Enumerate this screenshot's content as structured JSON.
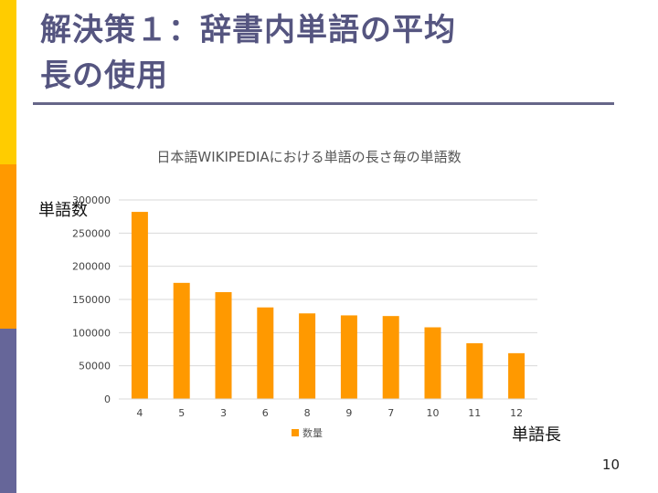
{
  "slide": {
    "title_line1": "解決策１：辞書内単語の平均",
    "title_line2": "長の使用",
    "page_number": "10"
  },
  "colors": {
    "sidebar_top": "#FFCC00",
    "sidebar_mid": "#FF9900",
    "sidebar_bottom": "#666699",
    "title": "#555580",
    "bar": "#FF9900"
  },
  "chart_data": {
    "type": "bar",
    "title": "日本語WIKIPEDIAにおける単語の長さ毎の単語数",
    "xlabel": "単語長",
    "ylabel": "単語数",
    "categories": [
      "4",
      "5",
      "3",
      "6",
      "8",
      "9",
      "7",
      "10",
      "11",
      "12"
    ],
    "series": [
      {
        "name": "数量",
        "values": [
          282000,
          175000,
          161000,
          138000,
          129000,
          126000,
          125000,
          108000,
          84000,
          69000
        ]
      }
    ],
    "ylim": [
      0,
      300000
    ],
    "yticks": [
      "0",
      "50000",
      "100000",
      "150000",
      "200000",
      "250000",
      "300000"
    ],
    "grid": true,
    "legend": "bottom"
  }
}
